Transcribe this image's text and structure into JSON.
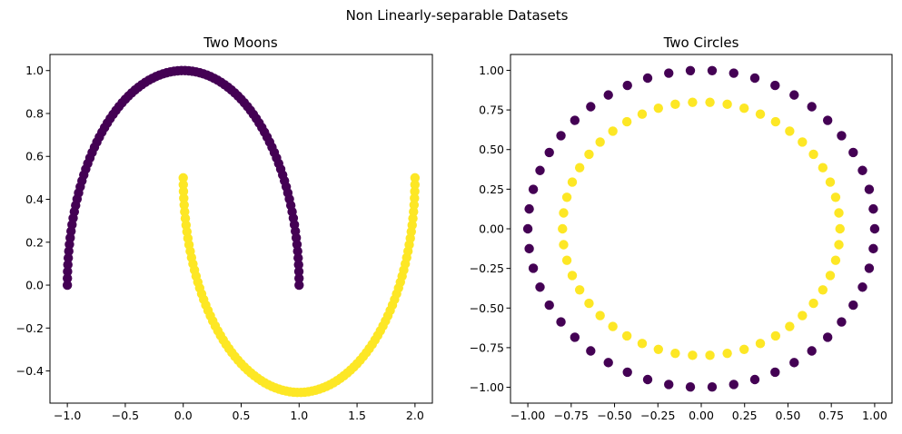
{
  "figure": {
    "suptitle": "Non Linearly-separable Datasets"
  },
  "colors": {
    "class_0": "#440154",
    "class_1": "#fde725"
  },
  "chart_data": [
    {
      "type": "scatter",
      "title": "Two Moons",
      "xlabel": "",
      "ylabel": "",
      "xlim": [
        -1.15,
        2.15
      ],
      "ylim": [
        -0.55,
        1.075
      ],
      "xticks": [
        -1.0,
        -0.5,
        0.0,
        0.5,
        1.0,
        1.5,
        2.0
      ],
      "xtick_labels": [
        "−1.0",
        "−0.5",
        "0.0",
        "0.5",
        "1.0",
        "1.5",
        "2.0"
      ],
      "yticks": [
        -0.4,
        -0.2,
        0.0,
        0.2,
        0.4,
        0.6,
        0.8,
        1.0
      ],
      "ytick_labels": [
        "−0.4",
        "−0.2",
        "0.0",
        "0.2",
        "0.4",
        "0.6",
        "0.8",
        "1.0"
      ],
      "grid": false,
      "series_generator": "make_moons",
      "n_samples_per_class": 100
    },
    {
      "type": "scatter",
      "title": "Two Circles",
      "xlabel": "",
      "ylabel": "",
      "xlim": [
        -1.1,
        1.1
      ],
      "ylim": [
        -1.1,
        1.1
      ],
      "xticks": [
        -1.0,
        -0.75,
        -0.5,
        -0.25,
        0.0,
        0.25,
        0.5,
        0.75,
        1.0
      ],
      "xtick_labels": [
        "−1.00",
        "−0.75",
        "−0.50",
        "−0.25",
        "0.00",
        "0.25",
        "0.50",
        "0.75",
        "1.00"
      ],
      "yticks": [
        -1.0,
        -0.75,
        -0.5,
        -0.25,
        0.0,
        0.25,
        0.5,
        0.75,
        1.0
      ],
      "ytick_labels": [
        "−1.00",
        "−0.75",
        "−0.50",
        "−0.25",
        "0.00",
        "0.25",
        "0.50",
        "0.75",
        "1.00"
      ],
      "grid": false,
      "series_generator": "make_circles",
      "n_samples_per_class": 50,
      "outer_radius": 1.0,
      "inner_radius": 0.8
    }
  ]
}
